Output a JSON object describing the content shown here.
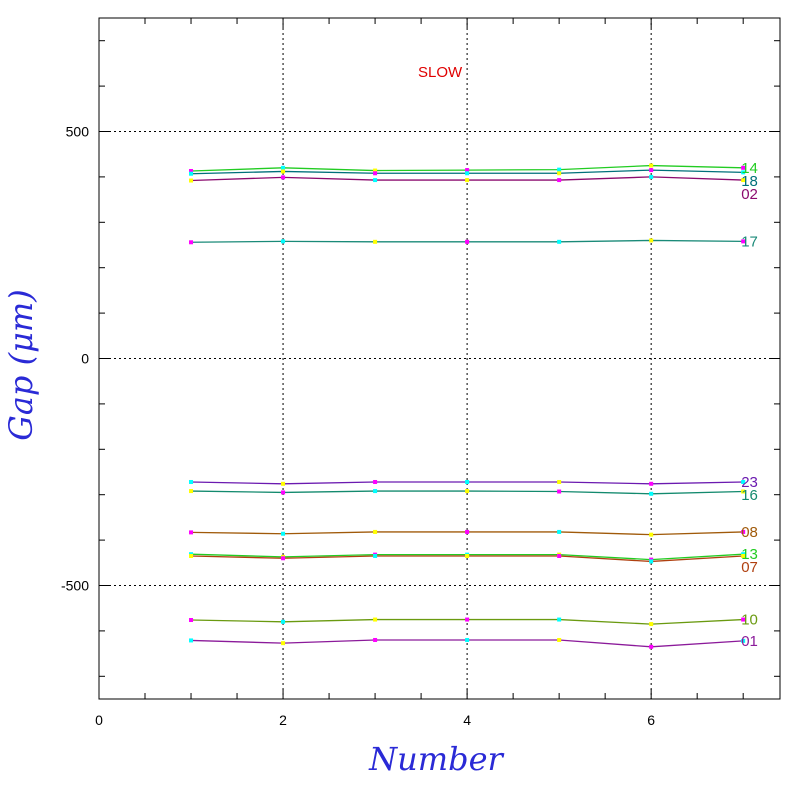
{
  "chart_data": {
    "type": "line",
    "title": "",
    "annotation": "SLOW",
    "xlabel": "Number",
    "ylabel": "Gap (μm)",
    "xlim": [
      0,
      7.4
    ],
    "ylim": [
      -750,
      750
    ],
    "xticks": [
      0,
      2,
      4,
      6
    ],
    "xtick_labels": [
      "0",
      "2",
      "4",
      "6"
    ],
    "yticks": [
      500,
      0,
      -500
    ],
    "ytick_labels": [
      "500",
      "0",
      "-500"
    ],
    "grid": true,
    "x": [
      1,
      2,
      3,
      4,
      5,
      6,
      7
    ],
    "series": [
      {
        "name": "14",
        "color": "#22cc22",
        "values": [
          413,
          420,
          414,
          415,
          416,
          425,
          420
        ]
      },
      {
        "name": "18",
        "color": "#00707a",
        "values": [
          407,
          412,
          408,
          408,
          408,
          415,
          410
        ]
      },
      {
        "name": "02",
        "color": "#8b0a6e",
        "values": [
          392,
          399,
          393,
          393,
          393,
          400,
          393
        ]
      },
      {
        "name": "17",
        "color": "#1a8a78",
        "values": [
          256,
          258,
          257,
          257,
          257,
          260,
          258
        ]
      },
      {
        "name": "23",
        "color": "#6b1ab0",
        "values": [
          -272,
          -276,
          -272,
          -272,
          -272,
          -276,
          -272
        ]
      },
      {
        "name": "16",
        "color": "#138a6e",
        "values": [
          -292,
          -295,
          -292,
          -292,
          -293,
          -298,
          -293
        ]
      },
      {
        "name": "08",
        "color": "#a05a0a",
        "values": [
          -383,
          -386,
          -382,
          -382,
          -382,
          -388,
          -382
        ]
      },
      {
        "name": "13",
        "color": "#22cc22",
        "values": [
          -431,
          -437,
          -432,
          -432,
          -432,
          -443,
          -431
        ]
      },
      {
        "name": "07",
        "color": "#b04010",
        "values": [
          -435,
          -440,
          -435,
          -435,
          -435,
          -447,
          -435
        ]
      },
      {
        "name": "10",
        "color": "#6a9a10",
        "values": [
          -576,
          -580,
          -575,
          -575,
          -575,
          -585,
          -575
        ]
      },
      {
        "name": "01",
        "color": "#8b1a9a",
        "values": [
          -621,
          -627,
          -620,
          -620,
          -620,
          -635,
          -622
        ]
      }
    ],
    "marker_colors": [
      "#ff00ff",
      "#00ffff",
      "#ffff00"
    ]
  }
}
